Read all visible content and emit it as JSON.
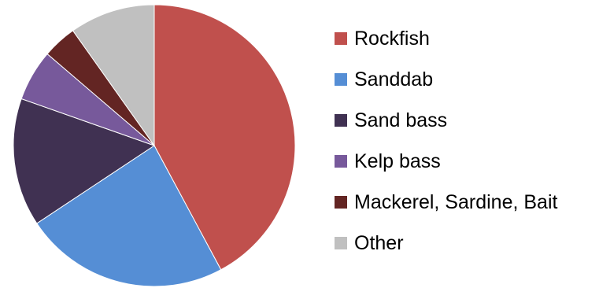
{
  "chart_data": {
    "type": "pie",
    "title": "",
    "legend_position": "right",
    "slices": [
      {
        "label": "Rockfish",
        "value": 43,
        "color": "#c0504d"
      },
      {
        "label": "Sanddab",
        "value": 24,
        "color": "#558ed5"
      },
      {
        "label": "Sand bass",
        "value": 15,
        "color": "#403152"
      },
      {
        "label": "Kelp bass",
        "value": 6,
        "color": "#77599b"
      },
      {
        "label": "Mackerel, Sardine, Bait",
        "value": 4,
        "color": "#632523"
      },
      {
        "label": "Other",
        "value": 10,
        "color": "#c0c0c0"
      }
    ]
  }
}
